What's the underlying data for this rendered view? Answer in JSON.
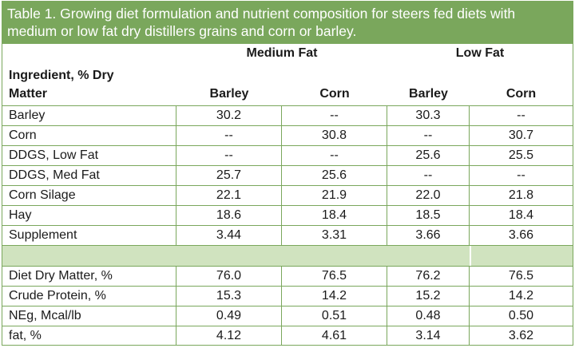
{
  "title": "Table 1. Growing diet formulation and nutrient composition for steers fed diets with medium or low fat dry distillers grains and corn or barley.",
  "groups": {
    "medium": "Medium Fat",
    "low": "Low Fat"
  },
  "header": {
    "ingredient_line1": "Ingredient, % Dry",
    "ingredient_line2": "Matter",
    "cols": [
      "Barley",
      "Corn",
      "Barley",
      "Corn"
    ]
  },
  "ingredients": [
    {
      "label": "Barley",
      "values": [
        "30.2",
        "--",
        "30.3",
        "--"
      ]
    },
    {
      "label": "Corn",
      "values": [
        "--",
        "30.8",
        "--",
        "30.7"
      ]
    },
    {
      "label": "DDGS, Low Fat",
      "values": [
        "--",
        "--",
        "25.6",
        "25.5"
      ]
    },
    {
      "label": "DDGS, Med Fat",
      "values": [
        "25.7",
        "25.6",
        "--",
        "--"
      ]
    },
    {
      "label": "Corn Silage",
      "values": [
        "22.1",
        "21.9",
        "22.0",
        "21.8"
      ]
    },
    {
      "label": "Hay",
      "values": [
        "18.6",
        "18.4",
        "18.5",
        "18.4"
      ]
    },
    {
      "label": "Supplement",
      "values": [
        "3.44",
        "3.31",
        "3.66",
        "3.66"
      ]
    }
  ],
  "nutrients": [
    {
      "label": "Diet Dry Matter, %",
      "values": [
        "76.0",
        "76.5",
        "76.2",
        "76.5"
      ]
    },
    {
      "label": "Crude Protein, %",
      "values": [
        "15.3",
        "14.2",
        "15.2",
        "14.2"
      ]
    },
    {
      "label": "NEg, Mcal/lb",
      "values": [
        "0.49",
        "0.51",
        "0.48",
        "0.50"
      ]
    },
    {
      "label": "fat, %",
      "values": [
        "4.12",
        "4.61",
        "3.14",
        "3.62"
      ]
    }
  ],
  "colors": {
    "header_green": "#7aa75c",
    "spacer_green": "#d0e3bf"
  }
}
